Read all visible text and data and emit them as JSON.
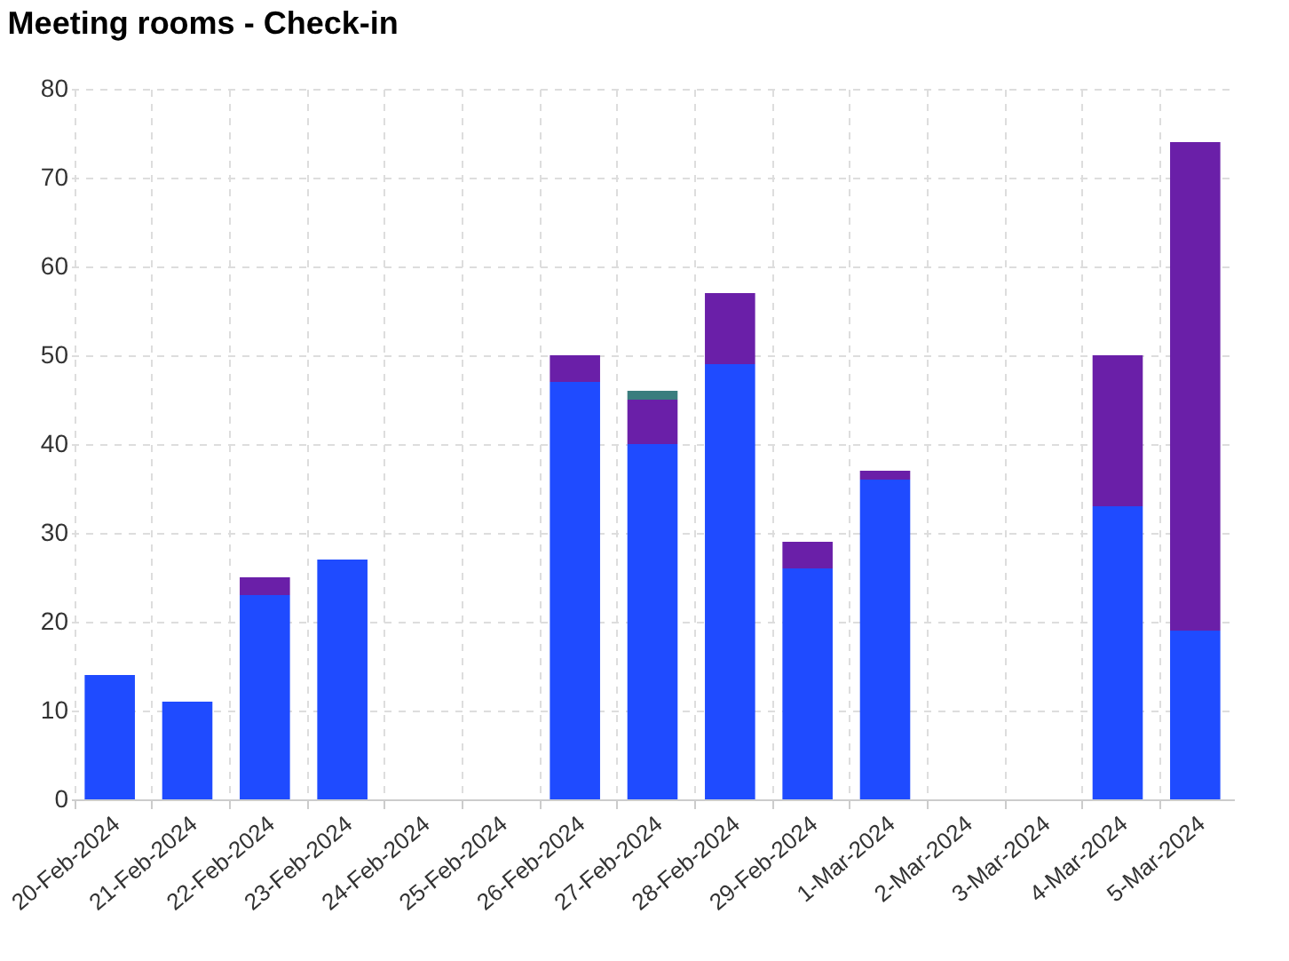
{
  "chart_data": {
    "type": "bar",
    "title": "Meeting rooms - Check-in",
    "stacked": true,
    "grid": true,
    "legend": false,
    "categories": [
      "20-Feb-2024",
      "21-Feb-2024",
      "22-Feb-2024",
      "23-Feb-2024",
      "24-Feb-2024",
      "25-Feb-2024",
      "26-Feb-2024",
      "27-Feb-2024",
      "28-Feb-2024",
      "29-Feb-2024",
      "1-Mar-2024",
      "2-Mar-2024",
      "3-Mar-2024",
      "4-Mar-2024",
      "5-Mar-2024"
    ],
    "series": [
      {
        "color": "#1f4bff",
        "values": [
          14,
          11,
          23,
          27,
          null,
          null,
          47,
          40,
          49,
          26,
          36,
          null,
          null,
          33,
          19
        ]
      },
      {
        "color": "#6a1fa8",
        "values": [
          null,
          null,
          2,
          null,
          null,
          null,
          3,
          5,
          8,
          3,
          1,
          null,
          null,
          17,
          55
        ]
      },
      {
        "color": "#3a7d7e",
        "values": [
          null,
          null,
          null,
          null,
          null,
          null,
          null,
          1,
          null,
          null,
          null,
          null,
          null,
          null,
          null
        ]
      }
    ],
    "ylim": [
      0,
      80
    ],
    "yticks": [
      0,
      10,
      20,
      30,
      40,
      50,
      60,
      70,
      80
    ]
  }
}
